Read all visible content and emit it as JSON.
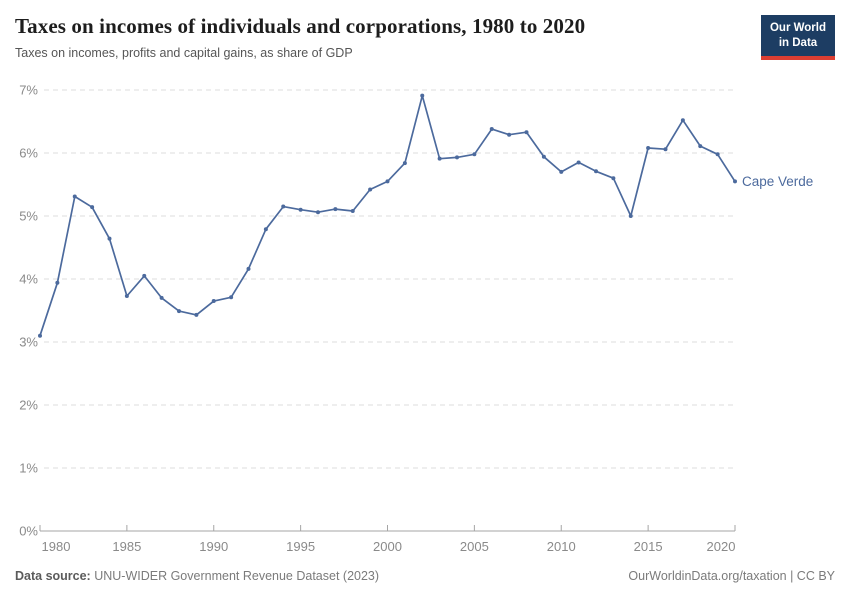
{
  "header": {
    "title": "Taxes on incomes of individuals and corporations, 1980 to 2020",
    "subtitle": "Taxes on incomes, profits and capital gains, as share of GDP",
    "logo": {
      "line1": "Our World",
      "line2": "in Data"
    }
  },
  "chart_data": {
    "type": "line",
    "title": "Taxes on incomes of individuals and corporations, 1980 to 2020",
    "subtitle": "Taxes on incomes, profits and capital gains, as share of GDP",
    "entity_label": "Cape Verde",
    "x": [
      1980,
      1981,
      1982,
      1983,
      1984,
      1985,
      1986,
      1987,
      1988,
      1989,
      1990,
      1991,
      1992,
      1993,
      1994,
      1995,
      1996,
      1997,
      1998,
      1999,
      2000,
      2001,
      2002,
      2003,
      2004,
      2005,
      2006,
      2007,
      2008,
      2009,
      2010,
      2011,
      2012,
      2013,
      2014,
      2015,
      2016,
      2017,
      2018,
      2019,
      2020
    ],
    "series": [
      {
        "name": "Cape Verde",
        "values": [
          3.1,
          3.94,
          5.31,
          5.14,
          4.64,
          3.73,
          4.05,
          3.7,
          3.49,
          3.43,
          3.65,
          3.71,
          4.16,
          4.79,
          5.15,
          5.1,
          5.06,
          5.11,
          5.08,
          5.42,
          5.55,
          5.84,
          6.91,
          5.91,
          5.93,
          5.98,
          6.38,
          6.29,
          6.33,
          5.94,
          5.7,
          5.85,
          5.71,
          5.6,
          5.0,
          6.08,
          6.06,
          6.52,
          6.11,
          5.98,
          5.55
        ]
      }
    ],
    "xlabel": "",
    "ylabel": "",
    "xlim": [
      1980,
      2020
    ],
    "ylim": [
      0,
      7
    ],
    "xticks": [
      1980,
      1985,
      1990,
      1995,
      2000,
      2005,
      2010,
      2015,
      2020
    ],
    "yticks": [
      0,
      1,
      2,
      3,
      4,
      5,
      6,
      7
    ],
    "ytick_suffix": "%",
    "grid": "horizontal-dashed",
    "legend_position": "end-of-line-label",
    "line_color": "#4c6a9d"
  },
  "footer": {
    "source_label": "Data source:",
    "source_text": " UNU-WIDER Government Revenue Dataset (2023)",
    "credit": "OurWorldinData.org/taxation | CC BY"
  },
  "colors": {
    "accent_line": "#4c6a9d",
    "logo_navy": "#1d3d63",
    "logo_red": "#dc3e32",
    "gridline": "#dedede",
    "axis_line": "#a5a5a5",
    "tick_label": "#8a8a8a",
    "title_text": "#1d1d1d",
    "subtitle_text": "#565656",
    "footer_text": "#7b7b7b"
  }
}
